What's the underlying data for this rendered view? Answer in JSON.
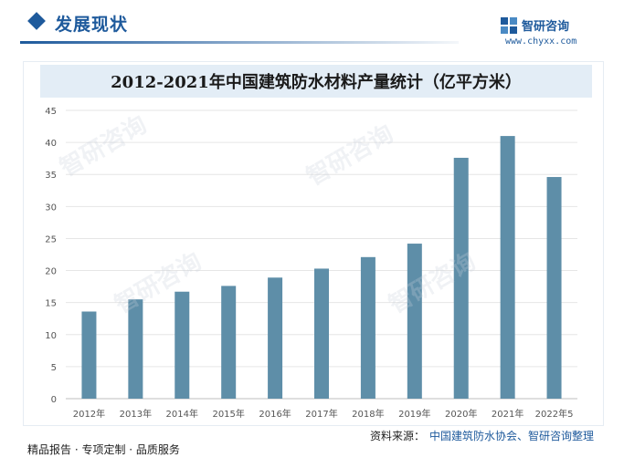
{
  "header": {
    "section_title": "发展现状",
    "brand_name": "智研咨询",
    "brand_url": "www.chyxx.com"
  },
  "chart_data": {
    "type": "bar",
    "title": "2012-2021年中国建筑防水材料产量统计（亿平方米）",
    "categories": [
      "2012年",
      "2013年",
      "2014年",
      "2015年",
      "2016年",
      "2017年",
      "2018年",
      "2019年",
      "2020年",
      "2021年",
      "2022年5"
    ],
    "values": [
      13.6,
      15.5,
      16.7,
      17.6,
      18.9,
      20.3,
      22.1,
      24.2,
      37.6,
      41.0,
      34.6
    ],
    "ylim": [
      0,
      45
    ],
    "yticks": [
      0,
      5,
      10,
      15,
      20,
      25,
      30,
      35,
      40,
      45
    ],
    "xlabel": "",
    "ylabel": "",
    "grid": true,
    "bar_color": "#5e8ea8"
  },
  "footer": {
    "tagline": "精品报告 · 专项定制 · 品质服务",
    "source_label": "资料来源：",
    "source_text": "中国建筑防水协会、智研咨询整理"
  },
  "watermark": {
    "text": "智研咨询"
  }
}
